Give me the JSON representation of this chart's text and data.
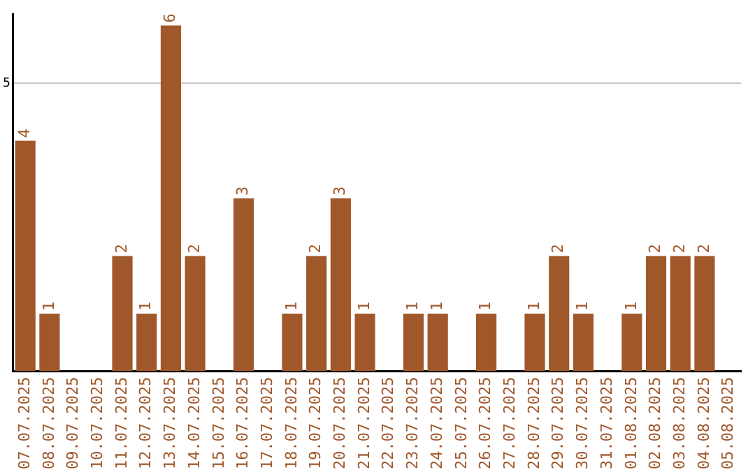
{
  "chart_data": {
    "type": "bar",
    "categories": [
      "07.07.2025",
      "08.07.2025",
      "09.07.2025",
      "10.07.2025",
      "11.07.2025",
      "12.07.2025",
      "13.07.2025",
      "14.07.2025",
      "15.07.2025",
      "16.07.2025",
      "17.07.2025",
      "18.07.2025",
      "19.07.2025",
      "20.07.2025",
      "21.07.2025",
      "22.07.2025",
      "23.07.2025",
      "24.07.2025",
      "25.07.2025",
      "26.07.2025",
      "27.07.2025",
      "28.07.2025",
      "29.07.2025",
      "30.07.2025",
      "31.07.2025",
      "01.08.2025",
      "02.08.2025",
      "03.08.2025",
      "04.08.2025",
      "05.08.2025"
    ],
    "values": [
      4,
      1,
      0,
      0,
      2,
      1,
      6,
      2,
      0,
      3,
      0,
      1,
      2,
      3,
      1,
      0,
      1,
      1,
      0,
      1,
      0,
      1,
      2,
      1,
      0,
      1,
      2,
      2,
      2,
      0
    ],
    "value_labels": [
      "4",
      "1",
      null,
      null,
      "2",
      "1",
      "6",
      "2",
      null,
      "3",
      null,
      "1",
      "2",
      "3",
      "1",
      null,
      "1",
      "1",
      null,
      "1",
      null,
      "1",
      "2",
      "1",
      null,
      "1",
      "2",
      "2",
      "2",
      null
    ],
    "color": "#a0572a",
    "ylim": [
      0,
      6.2
    ],
    "yticks": [
      5
    ],
    "grid": "y",
    "legend": false
  }
}
